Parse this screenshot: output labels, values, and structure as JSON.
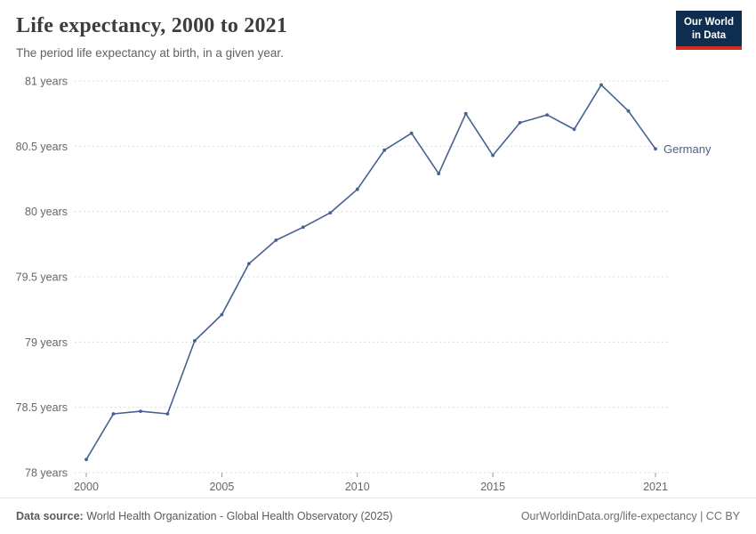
{
  "header": {
    "title": "Life expectancy, 2000 to 2021",
    "subtitle": "The period life expectancy at birth, in a given year.",
    "logo_line1": "Our World",
    "logo_line2": "in Data"
  },
  "chart_data": {
    "type": "line",
    "title": "Life expectancy, 2000 to 2021",
    "xlabel": "",
    "ylabel": "",
    "x": [
      2000,
      2001,
      2002,
      2003,
      2004,
      2005,
      2006,
      2007,
      2008,
      2009,
      2010,
      2011,
      2012,
      2013,
      2014,
      2015,
      2016,
      2017,
      2018,
      2019,
      2020,
      2021
    ],
    "series": [
      {
        "name": "Germany",
        "values": [
          78.1,
          78.45,
          78.47,
          78.45,
          79.01,
          79.21,
          79.6,
          79.78,
          79.88,
          79.99,
          80.17,
          80.47,
          80.6,
          80.29,
          80.75,
          80.43,
          80.68,
          80.74,
          80.63,
          80.97,
          80.77,
          80.48
        ]
      }
    ],
    "ylim": [
      78,
      81
    ],
    "ytick_step": 0.5,
    "ytick_suffix": " years",
    "xticks": [
      2000,
      2005,
      2010,
      2015,
      2021
    ],
    "grid": "horizontal-dashed",
    "legend_position": "end-of-line-label"
  },
  "colors": {
    "line": "#45618d",
    "grid": "#dcdcdc",
    "axis_text": "#666666",
    "tick": "#999999",
    "logo_bg": "#0f2d4e",
    "logo_red": "#d42b21"
  },
  "footer": {
    "datasource_label": "Data source:",
    "datasource_text": " World Health Organization - Global Health Observatory (2025)",
    "note": "OurWorldinData.org/life-expectancy | CC BY"
  }
}
